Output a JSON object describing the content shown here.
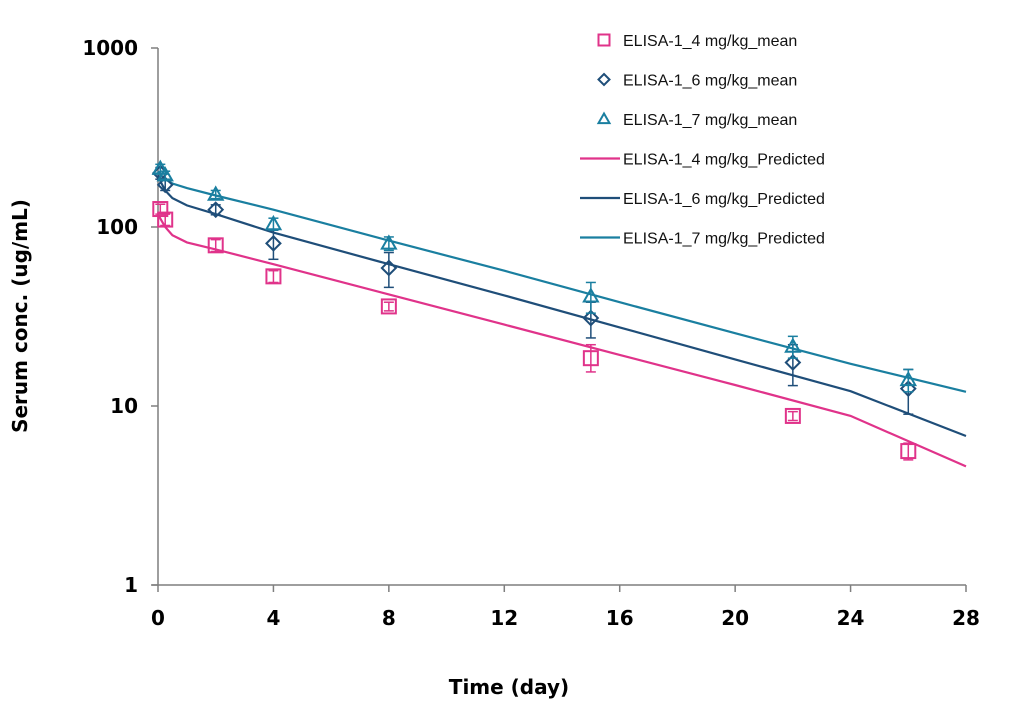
{
  "chart_data": {
    "type": "scatter",
    "title": "",
    "xlabel": "Time (day)",
    "ylabel": "Serum conc. (ug/mL)",
    "xlim": [
      0,
      28
    ],
    "ylim": [
      1,
      1000
    ],
    "yscale": "log",
    "x_ticks": [
      0,
      4,
      8,
      12,
      16,
      20,
      24,
      28
    ],
    "x_tick_labels": [
      "0",
      "4",
      "8",
      "12",
      "16",
      "20",
      "24",
      "28"
    ],
    "y_ticks": [
      1,
      10,
      100,
      1000
    ],
    "y_tick_labels": [
      "1",
      "10",
      "100",
      "1000"
    ],
    "grid": false,
    "legend_position": "top-right",
    "series": [
      {
        "name": "ELISA-1_4 mg/kg_mean",
        "kind": "markers",
        "marker": "square",
        "color": "#e0338a",
        "x": [
          0.08,
          0.25,
          2,
          4,
          8,
          15,
          22,
          26
        ],
        "y": [
          126,
          110,
          79,
          53,
          36,
          18.5,
          8.8,
          5.6
        ],
        "err_low": [
          8,
          8,
          6,
          4,
          2,
          3,
          0.5,
          0.6
        ],
        "err_high": [
          8,
          8,
          6,
          4,
          2,
          3.5,
          0.5,
          0.6
        ]
      },
      {
        "name": "ELISA-1_6 mg/kg_mean",
        "kind": "markers",
        "marker": "diamond",
        "color": "#1f4e79",
        "x": [
          0.08,
          0.25,
          2,
          4,
          8,
          15,
          22,
          26
        ],
        "y": [
          200,
          172,
          125,
          81,
          59,
          31,
          17.5,
          12.5
        ],
        "err_low": [
          15,
          12,
          8,
          15,
          13,
          7,
          4.5,
          3.5
        ],
        "err_high": [
          15,
          12,
          8,
          15,
          13,
          7,
          4.5,
          3.5
        ]
      },
      {
        "name": "ELISA-1_7 mg/kg_mean",
        "kind": "markers",
        "marker": "triangle",
        "color": "#1a7fa0",
        "x": [
          0.08,
          0.25,
          2,
          4,
          8,
          15,
          22,
          26
        ],
        "y": [
          212,
          195,
          152,
          104,
          81,
          41,
          21.5,
          14
        ],
        "err_low": [
          12,
          10,
          8,
          8,
          7,
          8,
          3,
          2
        ],
        "err_high": [
          12,
          10,
          8,
          8,
          7,
          8,
          3,
          2
        ]
      },
      {
        "name": "ELISA-1_4 mg/kg_Predicted",
        "kind": "line",
        "color": "#e0338a",
        "x": [
          0,
          0.1,
          0.25,
          0.5,
          1,
          2,
          4,
          8,
          12,
          16,
          20,
          24,
          28
        ],
        "y": [
          118,
          110,
          100,
          90,
          82,
          75,
          62,
          42,
          28.5,
          19.3,
          13.1,
          8.8,
          4.6
        ]
      },
      {
        "name": "ELISA-1_6 mg/kg_Predicted",
        "kind": "line",
        "color": "#1f4e79",
        "x": [
          0,
          0.1,
          0.25,
          0.5,
          1,
          2,
          4,
          8,
          12,
          16,
          20,
          24,
          28
        ],
        "y": [
          195,
          178,
          160,
          145,
          132,
          118,
          93,
          62,
          41.5,
          27.5,
          18.2,
          12.1,
          6.8
        ]
      },
      {
        "name": "ELISA-1_7 mg/kg_Predicted",
        "kind": "line",
        "color": "#1a7fa0",
        "x": [
          0,
          0.1,
          0.25,
          0.5,
          1,
          2,
          4,
          8,
          12,
          16,
          20,
          24,
          28
        ],
        "y": [
          205,
          195,
          185,
          175,
          165,
          150,
          125,
          84,
          57,
          38,
          25.5,
          17.2,
          12
        ]
      }
    ]
  }
}
